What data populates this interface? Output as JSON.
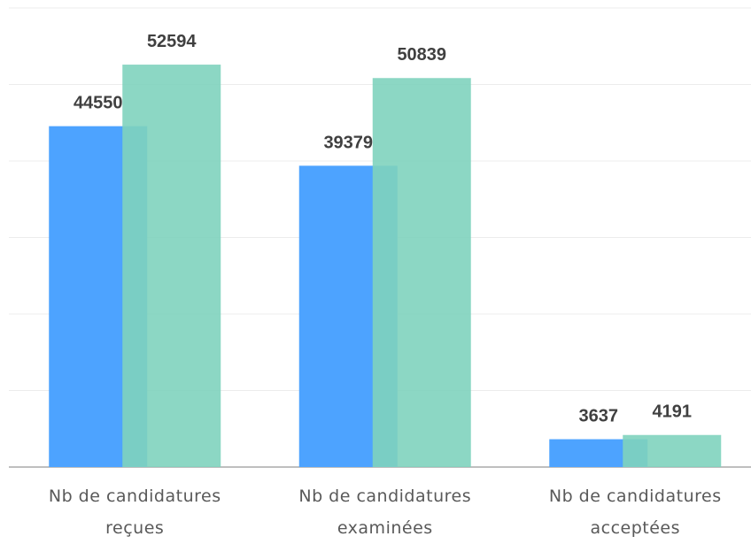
{
  "chart_data": {
    "type": "bar",
    "categories": [
      "Nb de candidatures reçues",
      "Nb de candidatures examinées",
      "Nb de candidatures acceptées"
    ],
    "series": [
      {
        "color": "#4da3ff",
        "values": [
          44550,
          39379,
          3637
        ]
      },
      {
        "color": "#7fd3be",
        "values": [
          52594,
          50839,
          4191
        ]
      }
    ],
    "ylim": [
      0,
      60000
    ],
    "yticks": [
      0,
      10000,
      20000,
      30000,
      40000,
      50000,
      60000
    ],
    "grid": true
  }
}
